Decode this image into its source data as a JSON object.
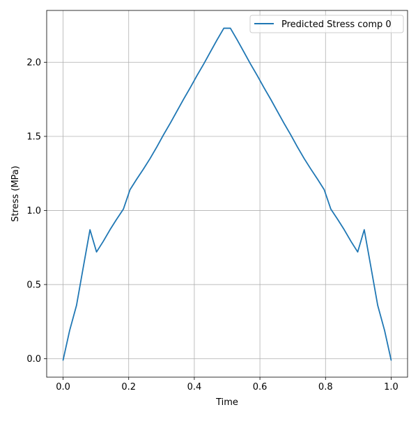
{
  "chart_data": {
    "type": "line",
    "title": "",
    "xlabel": "Time",
    "ylabel": "Stress (MPa)",
    "xlim": [
      -0.05,
      1.05
    ],
    "ylim": [
      -0.125,
      2.35
    ],
    "xticks": [
      0.0,
      0.2,
      0.4,
      0.6,
      0.8,
      1.0
    ],
    "xtick_labels": [
      "0.0",
      "0.2",
      "0.4",
      "0.6",
      "0.8",
      "1.0"
    ],
    "yticks": [
      0.0,
      0.5,
      1.0,
      1.5,
      2.0
    ],
    "ytick_labels": [
      "0.0",
      "0.5",
      "1.0",
      "1.5",
      "2.0"
    ],
    "grid": true,
    "legend_position": "top-right",
    "series": [
      {
        "name": "Predicted Stress comp 0",
        "color": "#1f77b4",
        "x": [
          0.0,
          0.02,
          0.041,
          0.061,
          0.082,
          0.102,
          0.122,
          0.143,
          0.163,
          0.184,
          0.204,
          0.224,
          0.245,
          0.265,
          0.286,
          0.306,
          0.327,
          0.347,
          0.367,
          0.388,
          0.408,
          0.429,
          0.449,
          0.469,
          0.49,
          0.51,
          0.531,
          0.551,
          0.571,
          0.592,
          0.612,
          0.633,
          0.653,
          0.673,
          0.694,
          0.714,
          0.735,
          0.755,
          0.776,
          0.796,
          0.816,
          0.837,
          0.857,
          0.878,
          0.898,
          0.918,
          0.939,
          0.959,
          0.98,
          1.0
        ],
        "y": [
          -0.01,
          0.19,
          0.36,
          0.61,
          0.87,
          0.72,
          0.79,
          0.87,
          0.94,
          1.01,
          1.14,
          1.21,
          1.28,
          1.35,
          1.43,
          1.51,
          1.59,
          1.67,
          1.75,
          1.83,
          1.91,
          1.99,
          2.07,
          2.15,
          2.23,
          2.23,
          2.15,
          2.07,
          1.99,
          1.91,
          1.83,
          1.75,
          1.67,
          1.59,
          1.51,
          1.43,
          1.35,
          1.28,
          1.21,
          1.14,
          1.01,
          0.94,
          0.87,
          0.79,
          0.72,
          0.87,
          0.61,
          0.36,
          0.19,
          -0.01
        ]
      }
    ]
  }
}
